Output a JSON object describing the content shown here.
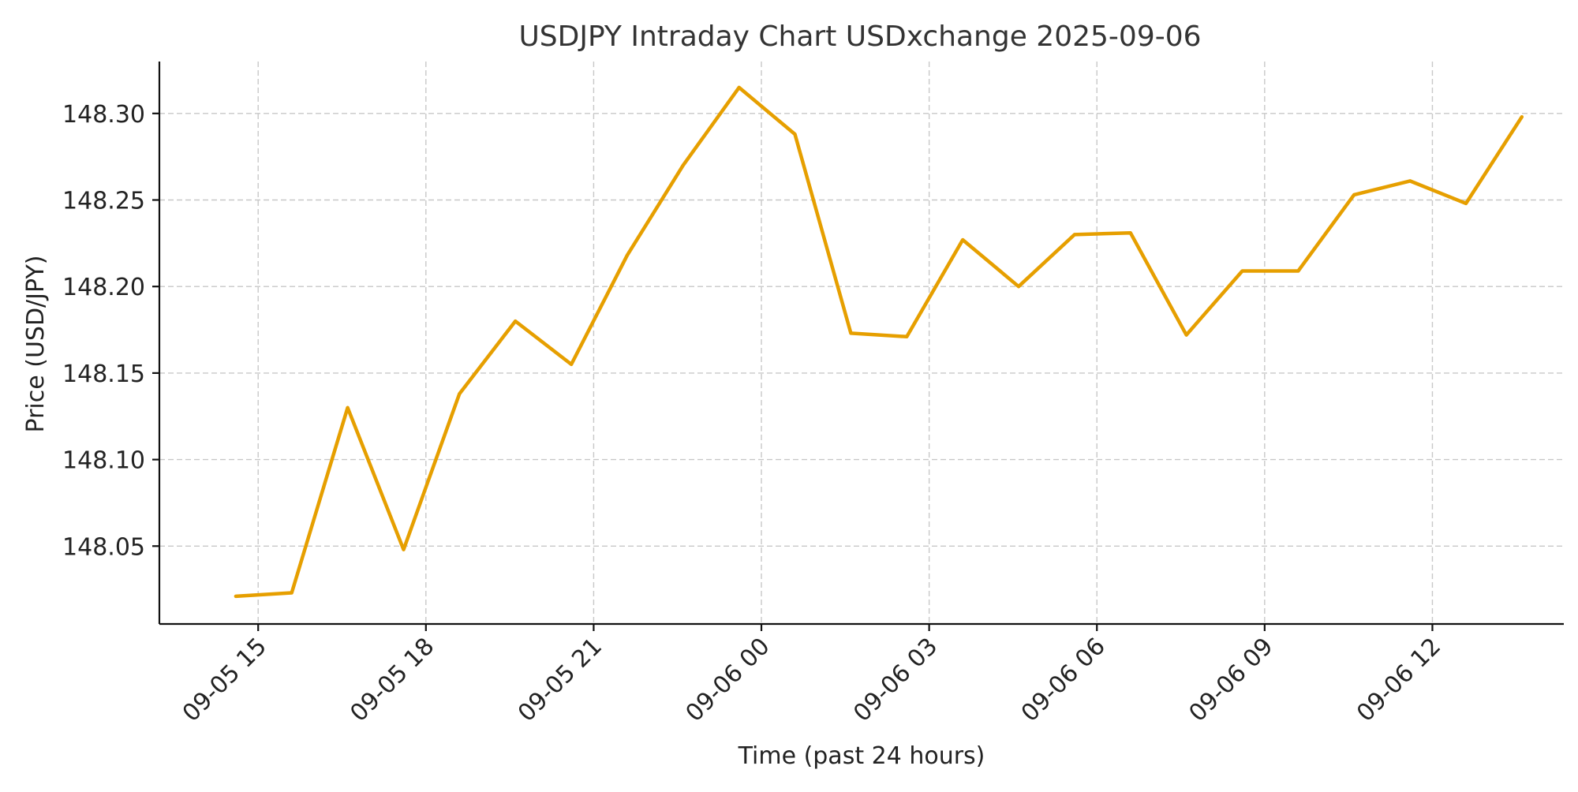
{
  "chart_data": {
    "type": "line",
    "title": "USDJPY Intraday Chart USDxchange 2025-09-06",
    "xlabel": "Time (past 24 hours)",
    "ylabel": "Price (USD/JPY)",
    "ylim": [
      148.005,
      148.33
    ],
    "xlim": [
      "2025-09-05 13:14",
      "2025-09-06 14:21"
    ],
    "grid": true,
    "line_color": "#E69F00",
    "x_tick_labels": [
      "09-05 15",
      "09-05 18",
      "09-05 21",
      "09-06 00",
      "09-06 03",
      "09-06 06",
      "09-06 09",
      "09-06 12"
    ],
    "x_ticks": [
      "2025-09-05 15:00",
      "2025-09-05 18:00",
      "2025-09-05 21:00",
      "2025-09-06 00:00",
      "2025-09-06 03:00",
      "2025-09-06 06:00",
      "2025-09-06 09:00",
      "2025-09-06 12:00"
    ],
    "y_ticks": [
      148.05,
      148.1,
      148.15,
      148.2,
      148.25,
      148.3
    ],
    "y_tick_labels": [
      "148.05",
      "148.10",
      "148.15",
      "148.20",
      "148.25",
      "148.30"
    ],
    "series": [
      {
        "x": [
          "2025-09-05 14:36",
          "2025-09-05 15:36",
          "2025-09-05 16:36",
          "2025-09-05 17:36",
          "2025-09-05 18:36",
          "2025-09-05 19:36",
          "2025-09-05 20:36",
          "2025-09-05 21:36",
          "2025-09-05 22:36",
          "2025-09-05 23:36",
          "2025-09-06 00:36",
          "2025-09-06 01:36",
          "2025-09-06 02:36",
          "2025-09-06 03:36",
          "2025-09-06 04:36",
          "2025-09-06 05:36",
          "2025-09-06 06:36",
          "2025-09-06 07:36",
          "2025-09-06 08:36",
          "2025-09-06 09:36",
          "2025-09-06 10:36",
          "2025-09-06 11:36",
          "2025-09-06 12:36",
          "2025-09-06 13:36"
        ],
        "values": [
          148.021,
          148.023,
          148.13,
          148.048,
          148.138,
          148.18,
          148.155,
          148.218,
          148.27,
          148.315,
          148.288,
          148.173,
          148.171,
          148.227,
          148.2,
          148.23,
          148.231,
          148.172,
          148.209,
          148.209,
          148.253,
          148.261,
          148.248,
          148.298
        ]
      }
    ]
  }
}
